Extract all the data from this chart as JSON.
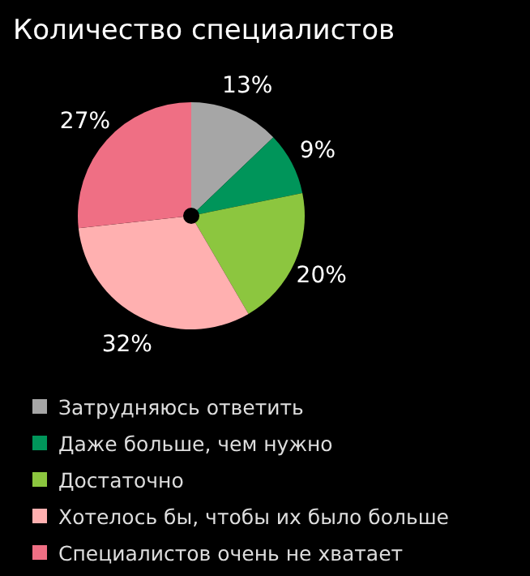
{
  "chart_data": {
    "type": "pie",
    "title": "Количество специалистов",
    "categories": [
      "Затрудняюсь ответить",
      "Даже больше, чем нужно",
      "Достаточно",
      "Хотелось бы, чтобы их было больше",
      "Специалистов очень не хватает"
    ],
    "values": [
      13,
      9,
      20,
      32,
      27
    ],
    "colors": [
      "#a6a6a6",
      "#00955a",
      "#8cc63f",
      "#ffb0b0",
      "#ef6f84"
    ],
    "legend": "bottom",
    "value_labels": [
      "13%",
      "9%",
      "20%",
      "32%",
      "27%"
    ]
  }
}
